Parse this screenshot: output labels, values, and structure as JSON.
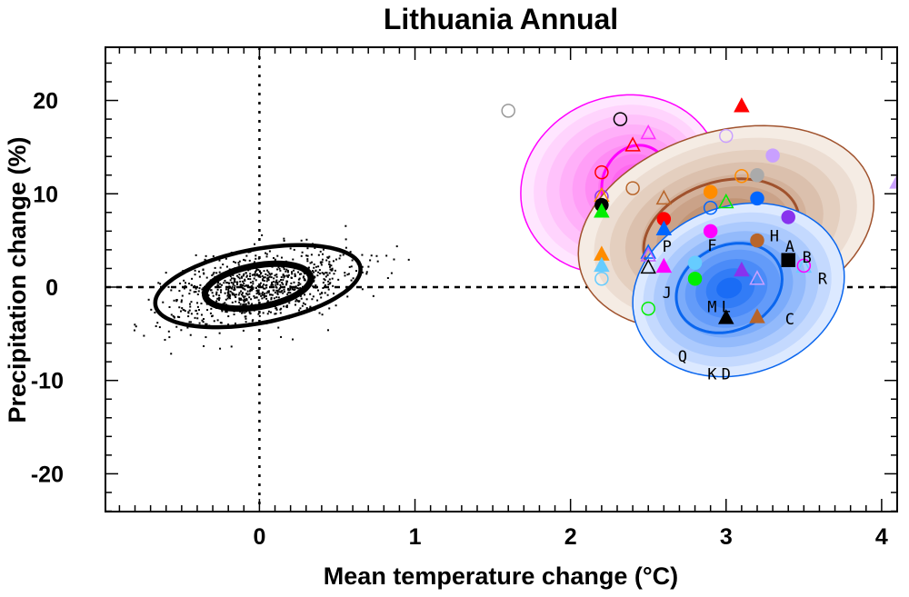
{
  "chart_data": {
    "type": "scatter",
    "title": "Lithuania Annual",
    "xlabel": "Mean temperature change (°C)",
    "xlabel_parts": {
      "pre": "Mean temperature change (",
      "sup": "o",
      "post": "C)"
    },
    "ylabel": "Precipitation change (%)",
    "xlim": [
      -0.99,
      4.1
    ],
    "ylim": [
      -24.05,
      25.7
    ],
    "xticks": [
      {
        "v": 0,
        "label": "0"
      },
      {
        "v": 1,
        "label": "1"
      },
      {
        "v": 2,
        "label": "2"
      },
      {
        "v": 3,
        "label": "3"
      },
      {
        "v": 4,
        "label": "4"
      }
    ],
    "yticks": [
      {
        "v": 20,
        "label": "20"
      },
      {
        "v": 10,
        "label": "10"
      },
      {
        "v": 0,
        "label": "0"
      },
      {
        "v": -10,
        "label": "-10"
      },
      {
        "v": -20,
        "label": "-20"
      }
    ],
    "x_minor_step": 0.1,
    "y_minor_step": 2,
    "zero_lines": true,
    "natural_variability": {
      "cloud": {
        "n": 900,
        "sd_x": 0.3,
        "sd_y": 2.1,
        "corr": 0.45,
        "color": "#000000"
      },
      "contours": [
        {
          "cx": -0.01,
          "cy": 0.1,
          "ax": 0.66,
          "ay": 4.4,
          "phi": 0.42
        },
        {
          "cx": -0.01,
          "cy": 0.1,
          "ax": 0.34,
          "ay": 2.4,
          "phi": 0.36
        }
      ]
    },
    "distributions": [
      {
        "name": "magenta",
        "color": "#ff00ff",
        "light": "#ffe6ff",
        "dark": "#ff55ee",
        "outer": {
          "cx": 2.32,
          "cy": 11.0,
          "ax": 0.64,
          "ay": 9.6,
          "phi": 0.1
        },
        "inner": {
          "cx": 2.42,
          "cy": 11.0,
          "ax": 0.22,
          "ay": 4.2,
          "phi": 0.1
        }
      },
      {
        "name": "brown",
        "color": "#a0522d",
        "light": "#f5ece4",
        "dark": "#b07650",
        "outer": {
          "cx": 3.0,
          "cy": 6.3,
          "ax": 0.95,
          "ay": 11.0,
          "phi": 0.25
        },
        "inner": {
          "cx": 2.97,
          "cy": 5.6,
          "ax": 0.5,
          "ay": 6.0,
          "phi": 0.25
        }
      },
      {
        "name": "blue",
        "color": "#0a66ee",
        "light": "#dce9ff",
        "dark": "#1a6cf5",
        "outer": {
          "cx": 3.08,
          "cy": -0.3,
          "ax": 0.68,
          "ay": 9.3,
          "phi": 0.15
        },
        "inner": {
          "cx": 3.02,
          "cy": -0.1,
          "ax": 0.34,
          "ay": 4.8,
          "phi": 0.2
        }
      }
    ],
    "points": [
      {
        "x": 1.6,
        "y": 18.9,
        "shape": "circle",
        "filled": false,
        "color": "#999999"
      },
      {
        "x": 2.32,
        "y": 18.0,
        "shape": "circle",
        "filled": false,
        "color": "#000000"
      },
      {
        "x": 3.1,
        "y": 19.4,
        "shape": "triangle",
        "filled": true,
        "color": "#ff0000"
      },
      {
        "x": 2.5,
        "y": 16.5,
        "shape": "triangle",
        "filled": false,
        "color": "#ff33ff"
      },
      {
        "x": 2.4,
        "y": 15.2,
        "shape": "triangle",
        "filled": false,
        "color": "#ff0000"
      },
      {
        "x": 3.0,
        "y": 16.2,
        "shape": "circle",
        "filled": false,
        "color": "#c9a0ff"
      },
      {
        "x": 3.3,
        "y": 14.1,
        "shape": "circle",
        "filled": true,
        "color": "#c9a0ff"
      },
      {
        "x": 2.2,
        "y": 12.3,
        "shape": "circle",
        "filled": false,
        "color": "#ff0000"
      },
      {
        "x": 2.4,
        "y": 10.6,
        "shape": "circle",
        "filled": false,
        "color": "#b8652a"
      },
      {
        "x": 3.1,
        "y": 11.9,
        "shape": "circle",
        "filled": false,
        "color": "#ff8c00"
      },
      {
        "x": 3.2,
        "y": 12.0,
        "shape": "circle",
        "filled": true,
        "color": "#aaaaaa"
      },
      {
        "x": 4.1,
        "y": 11.2,
        "shape": "triangle",
        "filled": true,
        "color": "#c9a0ff"
      },
      {
        "x": 2.2,
        "y": 9.7,
        "shape": "circle",
        "filled": false,
        "color": "#8833ee"
      },
      {
        "x": 2.2,
        "y": 9.8,
        "shape": "triangle",
        "filled": false,
        "color": "#ff8c00"
      },
      {
        "x": 2.2,
        "y": 8.8,
        "shape": "circle",
        "filled": true,
        "color": "#000000"
      },
      {
        "x": 2.2,
        "y": 8.1,
        "shape": "triangle",
        "filled": true,
        "color": "#00ee00"
      },
      {
        "x": 2.6,
        "y": 9.5,
        "shape": "triangle",
        "filled": false,
        "color": "#b8652a"
      },
      {
        "x": 2.9,
        "y": 10.2,
        "shape": "circle",
        "filled": true,
        "color": "#ff8c00"
      },
      {
        "x": 2.9,
        "y": 8.5,
        "shape": "circle",
        "filled": false,
        "color": "#0066ff"
      },
      {
        "x": 3.0,
        "y": 9.1,
        "shape": "triangle",
        "filled": false,
        "color": "#00ee00"
      },
      {
        "x": 3.2,
        "y": 9.5,
        "shape": "circle",
        "filled": true,
        "color": "#0066ff"
      },
      {
        "x": 3.4,
        "y": 7.5,
        "shape": "circle",
        "filled": true,
        "color": "#8833ee"
      },
      {
        "x": 2.6,
        "y": 7.3,
        "shape": "circle",
        "filled": true,
        "color": "#ff0000"
      },
      {
        "x": 2.6,
        "y": 6.2,
        "shape": "triangle",
        "filled": true,
        "color": "#0066ff"
      },
      {
        "x": 2.9,
        "y": 6.0,
        "shape": "circle",
        "filled": true,
        "color": "#ff00ff"
      },
      {
        "x": 3.2,
        "y": 5.0,
        "shape": "circle",
        "filled": true,
        "color": "#b8652a"
      },
      {
        "x": 3.4,
        "y": 2.9,
        "shape": "square",
        "filled": true,
        "color": "#000000"
      },
      {
        "x": 3.5,
        "y": 2.2,
        "shape": "triangle",
        "filled": false,
        "color": "#66ccff"
      },
      {
        "x": 3.5,
        "y": 2.3,
        "shape": "circle",
        "filled": false,
        "color": "#ff00ff"
      },
      {
        "x": 2.2,
        "y": 3.5,
        "shape": "triangle",
        "filled": true,
        "color": "#ff8c00"
      },
      {
        "x": 2.2,
        "y": 2.3,
        "shape": "triangle",
        "filled": true,
        "color": "#66ccff"
      },
      {
        "x": 2.2,
        "y": 0.9,
        "shape": "circle",
        "filled": false,
        "color": "#66ccff"
      },
      {
        "x": 2.5,
        "y": 3.7,
        "shape": "triangle",
        "filled": false,
        "color": "#0066ff"
      },
      {
        "x": 2.5,
        "y": 3.4,
        "shape": "triangle",
        "filled": false,
        "color": "#c060ff"
      },
      {
        "x": 2.5,
        "y": 2.1,
        "shape": "triangle",
        "filled": false,
        "color": "#000000"
      },
      {
        "x": 2.6,
        "y": 2.2,
        "shape": "triangle",
        "filled": true,
        "color": "#ff00ff"
      },
      {
        "x": 2.8,
        "y": 2.6,
        "shape": "circle",
        "filled": true,
        "color": "#66ccff"
      },
      {
        "x": 2.8,
        "y": 0.9,
        "shape": "circle",
        "filled": true,
        "color": "#00ee00"
      },
      {
        "x": 3.1,
        "y": 1.8,
        "shape": "triangle",
        "filled": true,
        "color": "#8833ee"
      },
      {
        "x": 3.2,
        "y": 0.9,
        "shape": "triangle",
        "filled": false,
        "color": "#c9a0ff"
      },
      {
        "x": 2.5,
        "y": -2.3,
        "shape": "circle",
        "filled": false,
        "color": "#00ee00"
      },
      {
        "x": 3.0,
        "y": -3.3,
        "shape": "triangle",
        "filled": true,
        "color": "#000000"
      },
      {
        "x": 3.2,
        "y": -3.2,
        "shape": "triangle",
        "filled": true,
        "color": "#b8652a"
      }
    ],
    "letters": [
      {
        "t": "H",
        "x": 3.31,
        "y": 5.5
      },
      {
        "t": "A",
        "x": 3.41,
        "y": 4.4
      },
      {
        "t": "B",
        "x": 3.52,
        "y": 3.2
      },
      {
        "t": "R",
        "x": 3.62,
        "y": 0.9
      },
      {
        "t": "P",
        "x": 2.62,
        "y": 4.4
      },
      {
        "t": "F",
        "x": 2.91,
        "y": 4.5
      },
      {
        "t": "J",
        "x": 2.62,
        "y": -0.6
      },
      {
        "t": "M",
        "x": 2.91,
        "y": -2.1
      },
      {
        "t": "L",
        "x": 3.0,
        "y": -2.1
      },
      {
        "t": "C",
        "x": 3.41,
        "y": -3.4
      },
      {
        "t": "Q",
        "x": 2.72,
        "y": -7.4
      },
      {
        "t": "K",
        "x": 2.91,
        "y": -9.3
      },
      {
        "t": "D",
        "x": 3.0,
        "y": -9.3
      }
    ]
  }
}
